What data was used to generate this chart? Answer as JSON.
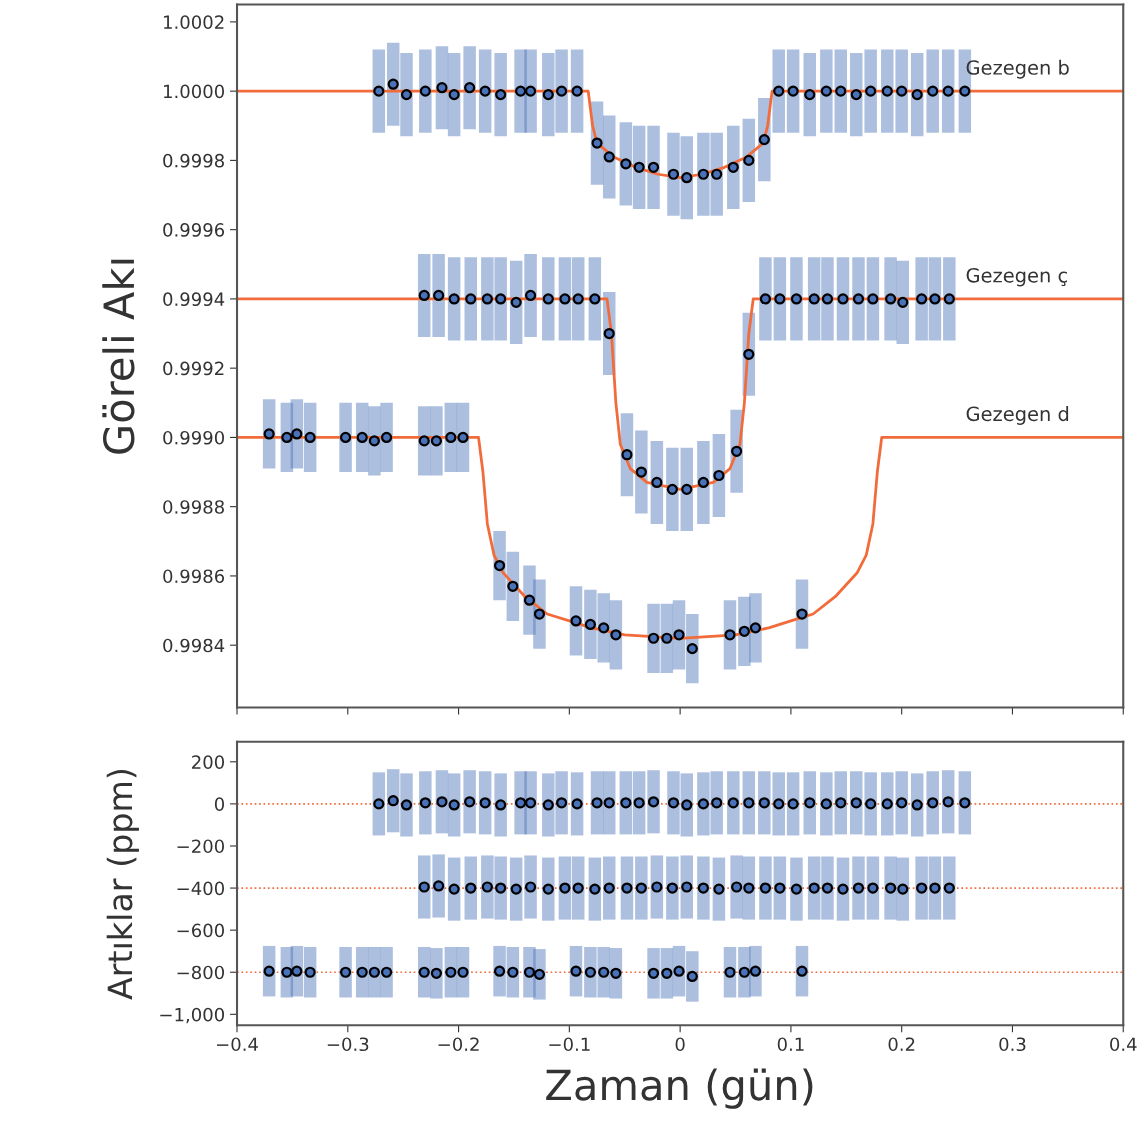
{
  "chart_data": [
    {
      "type": "scatter",
      "ylabel": "Göreli Akı",
      "xlim": [
        -0.4,
        0.4
      ],
      "ylim": [
        0.99822,
        1.00025
      ],
      "xticks": [
        {
          "value": -0.4,
          "label": null
        },
        {
          "value": -0.3,
          "label": null
        },
        {
          "value": -0.2,
          "label": null
        },
        {
          "value": -0.1,
          "label": null
        },
        {
          "value": 0,
          "label": null
        },
        {
          "value": 0.1,
          "label": null
        },
        {
          "value": 0.2,
          "label": null
        },
        {
          "value": 0.3,
          "label": null
        },
        {
          "value": 0.4,
          "label": null
        }
      ],
      "yticks": [
        0.9984,
        0.9986,
        0.9988,
        {
          "value": 0.999,
          "label": "0.9990"
        },
        0.9992,
        0.9994,
        0.9996,
        0.9998,
        {
          "value": 1.0,
          "label": "1.0000"
        },
        1.0002
      ],
      "tick_labels": "y",
      "grid": false,
      "marker": "circle",
      "series": [
        {
          "type": "line",
          "marker": "none",
          "color": "#f26b3a",
          "x": [
            -0.4,
            -0.083,
            -0.079,
            -0.075,
            -0.06,
            -0.04,
            -0.02,
            0,
            0.02,
            0.04,
            0.06,
            0.075,
            0.079,
            0.083,
            0.4
          ],
          "values": [
            1.0,
            1.0,
            0.9999,
            0.99985,
            0.99981,
            0.99978,
            0.99976,
            0.99975,
            0.99976,
            0.99978,
            0.99981,
            0.99985,
            0.9999,
            1.0,
            1.0
          ]
        },
        {
          "type": "line",
          "marker": "none",
          "color": "#f26b3a",
          "x": [
            -0.4,
            -0.066,
            -0.062,
            -0.058,
            -0.054,
            -0.045,
            -0.03,
            0,
            0.03,
            0.045,
            0.054,
            0.058,
            0.062,
            0.066,
            0.4
          ],
          "values": [
            0.9994,
            0.9994,
            0.9993,
            0.9991,
            0.99898,
            0.99891,
            0.99887,
            0.99885,
            0.99887,
            0.99891,
            0.99898,
            0.9991,
            0.9993,
            0.9994,
            0.9994
          ]
        },
        {
          "type": "line",
          "marker": "none",
          "color": "#f26b3a",
          "x": [
            -0.4,
            -0.182,
            -0.178,
            -0.174,
            -0.168,
            -0.16,
            -0.14,
            -0.12,
            -0.1,
            -0.08,
            -0.05,
            0,
            0.05,
            0.08,
            0.1,
            0.12,
            0.14,
            0.16,
            0.168,
            0.174,
            0.178,
            0.182,
            0.4
          ],
          "values": [
            0.999,
            0.999,
            0.9989,
            0.99875,
            0.99866,
            0.99861,
            0.99854,
            0.99849,
            0.99847,
            0.99845,
            0.99843,
            0.99842,
            0.99843,
            0.99845,
            0.99847,
            0.99849,
            0.99854,
            0.99861,
            0.99866,
            0.99875,
            0.9989,
            0.999,
            0.999
          ]
        },
        {
          "type": "scatter",
          "color": "#4a72b8",
          "x": [
            -0.272,
            -0.259,
            -0.247,
            -0.23,
            -0.215,
            -0.204,
            -0.19,
            -0.176,
            -0.162,
            -0.144,
            -0.135,
            -0.119,
            -0.107,
            -0.093,
            -0.075,
            -0.064,
            -0.049,
            -0.037,
            -0.024,
            -0.006,
            0.006,
            0.021,
            0.033,
            0.048,
            0.062,
            0.076,
            0.089,
            0.102,
            0.117,
            0.132,
            0.145,
            0.159,
            0.172,
            0.187,
            0.2,
            0.214,
            0.228,
            0.242,
            0.257
          ],
          "values": [
            1.0,
            1.00002,
            0.99999,
            1.0,
            1.00001,
            0.99999,
            1.00001,
            1.0,
            0.99999,
            1.0,
            1.0,
            0.99999,
            1.0,
            1.0,
            0.99985,
            0.99981,
            0.99979,
            0.99978,
            0.99978,
            0.99976,
            0.99975,
            0.99976,
            0.99976,
            0.99978,
            0.9998,
            0.99986,
            1.0,
            1.0,
            0.99999,
            1.0,
            1.0,
            0.99999,
            1.0,
            1.0,
            1.0,
            0.99999,
            1.0,
            1.0,
            1.0
          ],
          "errors": [
            0.00012,
            0.00012,
            0.00012,
            0.00012,
            0.00012,
            0.00012,
            0.00012,
            0.00012,
            0.00012,
            0.00012,
            0.00012,
            0.00012,
            0.00012,
            0.00012,
            0.00012,
            0.00012,
            0.00012,
            0.00012,
            0.00012,
            0.00012,
            0.00012,
            0.00012,
            0.00012,
            0.00012,
            0.00012,
            0.00012,
            0.00012,
            0.00012,
            0.00012,
            0.00012,
            0.00012,
            0.00012,
            0.00012,
            0.00012,
            0.00012,
            0.00012,
            0.00012,
            0.00012,
            0.00012
          ]
        },
        {
          "type": "scatter",
          "color": "#4a72b8",
          "x": [
            -0.231,
            -0.218,
            -0.204,
            -0.189,
            -0.174,
            -0.162,
            -0.148,
            -0.135,
            -0.119,
            -0.104,
            -0.092,
            -0.077,
            -0.064,
            -0.048,
            -0.035,
            -0.021,
            -0.007,
            0.006,
            0.021,
            0.035,
            0.051,
            0.062,
            0.077,
            0.09,
            0.105,
            0.121,
            0.133,
            0.147,
            0.161,
            0.174,
            0.19,
            0.201,
            0.218,
            0.23,
            0.243
          ],
          "values": [
            0.99941,
            0.99941,
            0.9994,
            0.9994,
            0.9994,
            0.9994,
            0.99939,
            0.99941,
            0.9994,
            0.9994,
            0.9994,
            0.9994,
            0.9993,
            0.99895,
            0.9989,
            0.99887,
            0.99885,
            0.99885,
            0.99887,
            0.99889,
            0.99896,
            0.99924,
            0.9994,
            0.9994,
            0.9994,
            0.9994,
            0.9994,
            0.9994,
            0.9994,
            0.9994,
            0.9994,
            0.99939,
            0.9994,
            0.9994,
            0.9994
          ],
          "errors": [
            0.00012,
            0.00012,
            0.00012,
            0.00012,
            0.00012,
            0.00012,
            0.00012,
            0.00012,
            0.00012,
            0.00012,
            0.00012,
            0.00012,
            0.00012,
            0.00012,
            0.00012,
            0.00012,
            0.00012,
            0.00012,
            0.00012,
            0.00012,
            0.00012,
            0.00012,
            0.00012,
            0.00012,
            0.00012,
            0.00012,
            0.00012,
            0.00012,
            0.00012,
            0.00012,
            0.00012,
            0.00012,
            0.00012,
            0.00012,
            0.00012
          ]
        },
        {
          "type": "scatter",
          "color": "#4a72b8",
          "x": [
            -0.371,
            -0.355,
            -0.346,
            -0.334,
            -0.302,
            -0.287,
            -0.276,
            -0.265,
            -0.231,
            -0.22,
            -0.207,
            -0.196,
            -0.163,
            -0.151,
            -0.136,
            -0.127,
            -0.094,
            -0.081,
            -0.069,
            -0.058,
            -0.024,
            -0.012,
            -0.001,
            0.011,
            0.045,
            0.058,
            0.068,
            0.11
          ],
          "values": [
            0.99901,
            0.999,
            0.99901,
            0.999,
            0.999,
            0.999,
            0.99899,
            0.999,
            0.99899,
            0.99899,
            0.999,
            0.999,
            0.99863,
            0.99857,
            0.99853,
            0.99849,
            0.99847,
            0.99846,
            0.99845,
            0.99843,
            0.99842,
            0.99842,
            0.99843,
            0.99839,
            0.99843,
            0.99844,
            0.99845,
            0.99849
          ],
          "errors": [
            0.0001,
            0.0001,
            0.0001,
            0.0001,
            0.0001,
            0.0001,
            0.0001,
            0.0001,
            0.0001,
            0.0001,
            0.0001,
            0.0001,
            0.0001,
            0.0001,
            0.0001,
            0.0001,
            0.0001,
            0.0001,
            0.0001,
            0.0001,
            0.0001,
            0.0001,
            0.0001,
            0.0001,
            0.0001,
            0.0001,
            0.0001,
            0.0001
          ]
        }
      ],
      "annotations": [
        "Gezegen b",
        "Gezegen ç",
        "Gezegen d"
      ]
    },
    {
      "type": "scatter",
      "xlabel": "Zaman (gün)",
      "ylabel": "Artıklar (ppm)",
      "xlim": [
        -0.4,
        0.4
      ],
      "ylim": [
        -1052,
        295
      ],
      "xticks": [
        {
          "value": -0.4,
          "label": "−0.4"
        },
        {
          "value": -0.3,
          "label": "−0.3"
        },
        {
          "value": -0.2,
          "label": "−0.2"
        },
        {
          "value": -0.1,
          "label": "−0.1"
        },
        0,
        0.1,
        0.2,
        0.3,
        0.4
      ],
      "yticks": [
        {
          "value": -1000,
          "label": "−1,000"
        },
        {
          "value": -800,
          "label": "−800"
        },
        {
          "value": -600,
          "label": "−600"
        },
        {
          "value": -400,
          "label": "−400"
        },
        {
          "value": -200,
          "label": "−200"
        },
        0,
        200
      ],
      "grid": false,
      "marker": "circle",
      "ref_lines": [
        {
          "axis": "y",
          "value": 0,
          "color": "#f26b3a",
          "line_style": "dotted"
        },
        {
          "axis": "y",
          "value": -400,
          "color": "#f26b3a",
          "line_style": "dotted"
        },
        {
          "axis": "y",
          "value": -800,
          "color": "#f26b3a",
          "line_style": "dotted"
        }
      ],
      "series": [
        {
          "type": "scatter",
          "color": "#4a72b8",
          "x": [
            -0.272,
            -0.259,
            -0.247,
            -0.23,
            -0.215,
            -0.204,
            -0.19,
            -0.176,
            -0.162,
            -0.144,
            -0.135,
            -0.119,
            -0.107,
            -0.093,
            -0.075,
            -0.064,
            -0.049,
            -0.037,
            -0.024,
            -0.006,
            0.006,
            0.021,
            0.033,
            0.048,
            0.062,
            0.076,
            0.089,
            0.102,
            0.117,
            0.132,
            0.145,
            0.159,
            0.172,
            0.187,
            0.2,
            0.214,
            0.228,
            0.242,
            0.257
          ],
          "values": [
            0,
            15,
            -5,
            5,
            10,
            -5,
            10,
            5,
            -5,
            5,
            5,
            -5,
            5,
            0,
            5,
            5,
            5,
            5,
            10,
            5,
            -5,
            0,
            5,
            5,
            5,
            5,
            0,
            0,
            5,
            0,
            5,
            5,
            0,
            0,
            5,
            -5,
            5,
            10,
            5
          ],
          "errors": [
            150,
            150,
            150,
            150,
            150,
            150,
            150,
            150,
            150,
            150,
            150,
            150,
            150,
            150,
            150,
            150,
            150,
            150,
            150,
            150,
            150,
            150,
            150,
            150,
            150,
            150,
            150,
            150,
            150,
            150,
            150,
            150,
            150,
            150,
            150,
            150,
            150,
            150,
            150
          ]
        },
        {
          "type": "scatter",
          "color": "#4a72b8",
          "x": [
            -0.231,
            -0.218,
            -0.204,
            -0.189,
            -0.174,
            -0.162,
            -0.148,
            -0.135,
            -0.119,
            -0.104,
            -0.092,
            -0.077,
            -0.064,
            -0.048,
            -0.035,
            -0.021,
            -0.007,
            0.006,
            0.021,
            0.035,
            0.051,
            0.062,
            0.077,
            0.09,
            0.105,
            0.121,
            0.133,
            0.147,
            0.161,
            0.174,
            0.19,
            0.201,
            0.218,
            0.23,
            0.243
          ],
          "values": [
            -395,
            -390,
            -405,
            -400,
            -395,
            -400,
            -405,
            -395,
            -405,
            -400,
            -400,
            -405,
            -400,
            -400,
            -400,
            -395,
            -400,
            -395,
            -400,
            -405,
            -395,
            -400,
            -400,
            -400,
            -405,
            -400,
            -400,
            -405,
            -400,
            -400,
            -400,
            -405,
            -400,
            -400,
            -400
          ],
          "errors": [
            150,
            150,
            150,
            150,
            150,
            150,
            150,
            150,
            150,
            150,
            150,
            150,
            150,
            150,
            150,
            150,
            150,
            150,
            150,
            150,
            150,
            150,
            150,
            150,
            150,
            150,
            150,
            150,
            150,
            150,
            150,
            150,
            150,
            150,
            150
          ]
        },
        {
          "type": "scatter",
          "color": "#4a72b8",
          "x": [
            -0.371,
            -0.355,
            -0.346,
            -0.334,
            -0.302,
            -0.287,
            -0.276,
            -0.265,
            -0.231,
            -0.22,
            -0.207,
            -0.196,
            -0.163,
            -0.151,
            -0.136,
            -0.127,
            -0.094,
            -0.081,
            -0.069,
            -0.058,
            -0.024,
            -0.012,
            -0.001,
            0.011,
            0.045,
            0.058,
            0.068,
            0.11
          ],
          "values": [
            -795,
            -800,
            -795,
            -800,
            -800,
            -800,
            -800,
            -800,
            -800,
            -805,
            -800,
            -800,
            -795,
            -800,
            -800,
            -810,
            -795,
            -800,
            -800,
            -805,
            -805,
            -805,
            -795,
            -820,
            -800,
            -800,
            -795,
            -795
          ],
          "errors": [
            120,
            120,
            120,
            120,
            120,
            120,
            120,
            120,
            120,
            120,
            120,
            120,
            120,
            120,
            120,
            120,
            120,
            120,
            120,
            120,
            120,
            120,
            120,
            120,
            120,
            120,
            120,
            120
          ]
        }
      ]
    }
  ]
}
